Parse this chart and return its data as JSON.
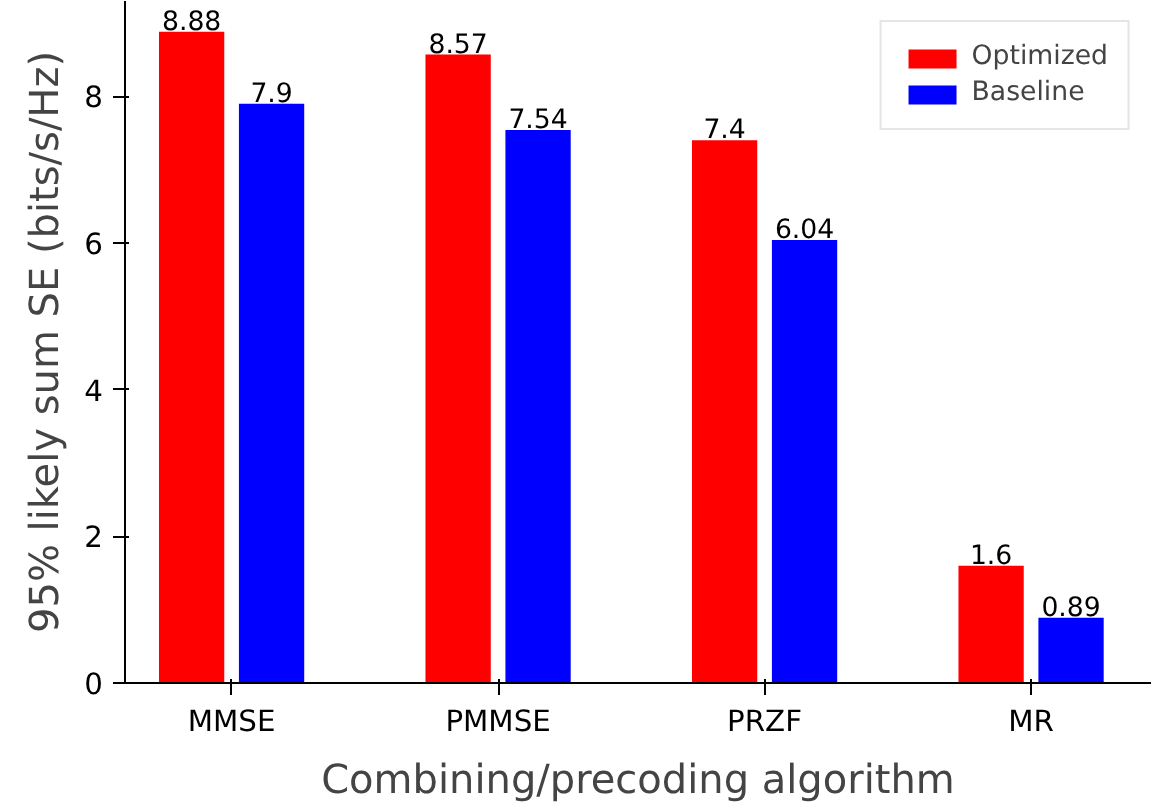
{
  "chart_data": {
    "type": "bar",
    "xlabel": "Combining/precoding algorithm",
    "ylabel": "95% likely sum SE (bits/s/Hz)",
    "categories": [
      "MMSE",
      "PMMSE",
      "PRZF",
      "MR"
    ],
    "series": [
      {
        "name": "Optimized",
        "color": "#ff0000",
        "values": [
          8.88,
          8.57,
          7.4,
          1.6
        ]
      },
      {
        "name": "Baseline",
        "color": "#0000ff",
        "values": [
          7.9,
          7.54,
          6.04,
          0.89
        ]
      }
    ],
    "ylim": [
      0,
      9.3
    ],
    "yticks": [
      0,
      2,
      4,
      6,
      8
    ],
    "data_labels": true,
    "legend": "top right",
    "grid": false
  }
}
